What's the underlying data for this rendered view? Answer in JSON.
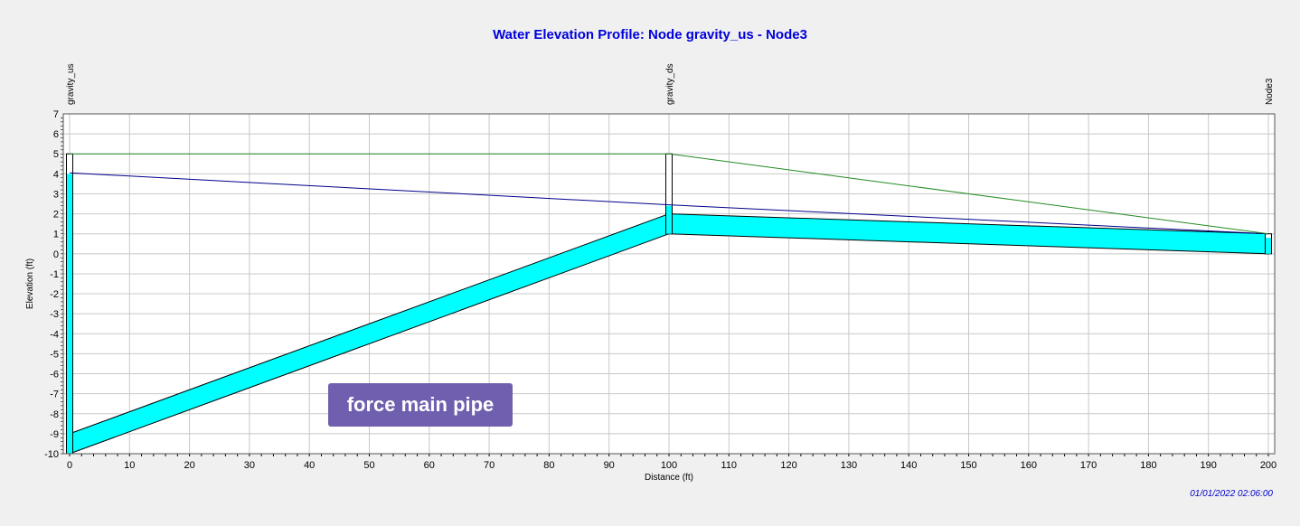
{
  "title": "Water Elevation Profile: Node gravity_us - Node3",
  "timestamp": "01/01/2022 02:06:00",
  "annotation": "force main pipe",
  "chart_data": {
    "type": "line",
    "title": "Water Elevation Profile: Node gravity_us - Node3",
    "xlabel": "Distance (ft)",
    "ylabel": "Elevation (ft)",
    "xlim": [
      0,
      200
    ],
    "ylim": [
      -10,
      7
    ],
    "x_ticks": [
      0,
      10,
      20,
      30,
      40,
      50,
      60,
      70,
      80,
      90,
      100,
      110,
      120,
      130,
      140,
      150,
      160,
      170,
      180,
      190,
      200
    ],
    "y_ticks": [
      7,
      6,
      5,
      4,
      3,
      2,
      1,
      0,
      -1,
      -2,
      -3,
      -4,
      -5,
      -6,
      -7,
      -8,
      -9,
      -10
    ],
    "grid": true,
    "nodes": [
      {
        "name": "gravity_us",
        "x": 0,
        "invert": -10,
        "rim": 5
      },
      {
        "name": "gravity_ds",
        "x": 100,
        "invert": 1,
        "rim": 5
      },
      {
        "name": "Node3",
        "x": 200,
        "invert": 0,
        "rim": 1
      }
    ],
    "links": [
      {
        "from_x": 0,
        "to_x": 100,
        "invert_start": -10,
        "invert_end": 1,
        "crown_start": -9,
        "crown_end": 2,
        "water_start": -9,
        "water_end": 2
      },
      {
        "from_x": 100,
        "to_x": 200,
        "invert_start": 1,
        "invert_end": 0,
        "crown_start": 2,
        "crown_end": 1,
        "water_start": 2,
        "water_end": 0.8
      }
    ],
    "node_water_levels": [
      4.0,
      2.4,
      0.8
    ],
    "series": [
      {
        "color": "#00008b",
        "x": [
          0,
          100,
          200
        ],
        "y": [
          4.05,
          2.45,
          1.0
        ]
      },
      {
        "color": "#228b22",
        "x": [
          0,
          100,
          200
        ],
        "y": [
          5,
          5,
          1
        ]
      }
    ],
    "colors": {
      "fill": "#00ffff",
      "outline": "#000000",
      "grid": "#c8c8c8"
    }
  }
}
